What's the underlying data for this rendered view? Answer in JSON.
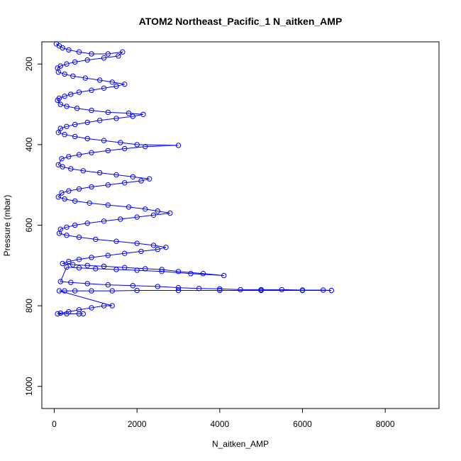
{
  "chart_data": {
    "type": "scatter",
    "title": "ATOM2 Northeast_Pacific_1 N_aitken_AMP",
    "xlabel": "N_aitken_AMP",
    "ylabel": "Pressure (mbar)",
    "xlim": [
      -300,
      9300
    ],
    "ylim": [
      1055,
      145
    ],
    "y_reversed": true,
    "x_ticks": [
      0,
      2000,
      4000,
      6000,
      8000
    ],
    "x_tick_labels": [
      "0",
      "2000",
      "4000",
      "6000",
      "8000"
    ],
    "y_ticks": [
      200,
      400,
      600,
      800,
      1000
    ],
    "y_tick_labels": [
      "200",
      "400",
      "600",
      "800",
      "1000"
    ],
    "grid": false,
    "marker": "open-circle",
    "line_connected": true,
    "colors": {
      "series": "#0000ff",
      "axes": "#000000"
    },
    "series": [
      {
        "x": [
          50,
          120,
          200,
          350,
          600,
          900,
          1300,
          1650,
          1550,
          1200,
          800,
          500,
          300,
          150,
          80,
          100,
          250,
          450,
          750,
          1100,
          1400,
          1700,
          1500,
          1200,
          900,
          600,
          400,
          250,
          120,
          80,
          150,
          300,
          550,
          900,
          1300,
          1800,
          2150,
          1900,
          1500,
          1100,
          800,
          500,
          300,
          150,
          100,
          250,
          500,
          800,
          1200,
          1600,
          2000,
          3000,
          2200,
          1700,
          1300,
          900,
          600,
          350,
          180,
          100,
          200,
          400,
          700,
          1100,
          1500,
          1900,
          2300,
          2100,
          1700,
          1300,
          900,
          600,
          350,
          180,
          100,
          250,
          500,
          850,
          1300,
          1800,
          2200,
          2500,
          2800,
          2400,
          2000,
          1600,
          1200,
          800,
          500,
          300,
          150,
          120,
          300,
          600,
          1000,
          1500,
          2000,
          2400,
          2700,
          2500,
          2100,
          1700,
          1300,
          900,
          600,
          350,
          200,
          450,
          800,
          1200,
          1700,
          2200,
          2600,
          3000,
          3600,
          4100,
          3300,
          2600,
          2000,
          1500,
          1000,
          600,
          300,
          150,
          400,
          800,
          1300,
          1900,
          2500,
          3000,
          3500,
          4000,
          4500,
          5000,
          5500,
          6000,
          6500,
          6700,
          6000,
          5000,
          4000,
          3000,
          2000,
          1400,
          900,
          500,
          250,
          120,
          1400,
          1200,
          900,
          600,
          350,
          150,
          80,
          300,
          600,
          700
        ],
        "y": [
          150,
          155,
          160,
          165,
          170,
          175,
          175,
          170,
          180,
          185,
          190,
          195,
          200,
          205,
          210,
          220,
          225,
          230,
          235,
          240,
          245,
          250,
          255,
          260,
          265,
          270,
          275,
          280,
          285,
          290,
          300,
          305,
          310,
          315,
          320,
          322,
          325,
          330,
          335,
          340,
          345,
          350,
          355,
          360,
          370,
          375,
          380,
          385,
          390,
          395,
          400,
          402,
          405,
          410,
          415,
          420,
          425,
          430,
          435,
          450,
          455,
          460,
          465,
          470,
          475,
          480,
          485,
          490,
          495,
          500,
          505,
          510,
          515,
          520,
          530,
          535,
          540,
          545,
          550,
          555,
          560,
          565,
          570,
          575,
          580,
          585,
          590,
          595,
          600,
          605,
          610,
          620,
          625,
          630,
          635,
          640,
          645,
          650,
          655,
          660,
          665,
          670,
          675,
          680,
          685,
          690,
          695,
          698,
          700,
          702,
          705,
          708,
          710,
          715,
          720,
          725,
          720,
          715,
          712,
          710,
          708,
          706,
          704,
          740,
          742,
          745,
          748,
          750,
          752,
          755,
          757,
          758,
          760,
          760,
          760,
          761,
          761,
          762,
          762,
          762,
          762,
          762,
          762,
          763,
          763,
          763,
          763,
          763,
          800,
          800,
          805,
          810,
          815,
          818,
          820,
          820,
          820,
          820
        ]
      }
    ]
  }
}
